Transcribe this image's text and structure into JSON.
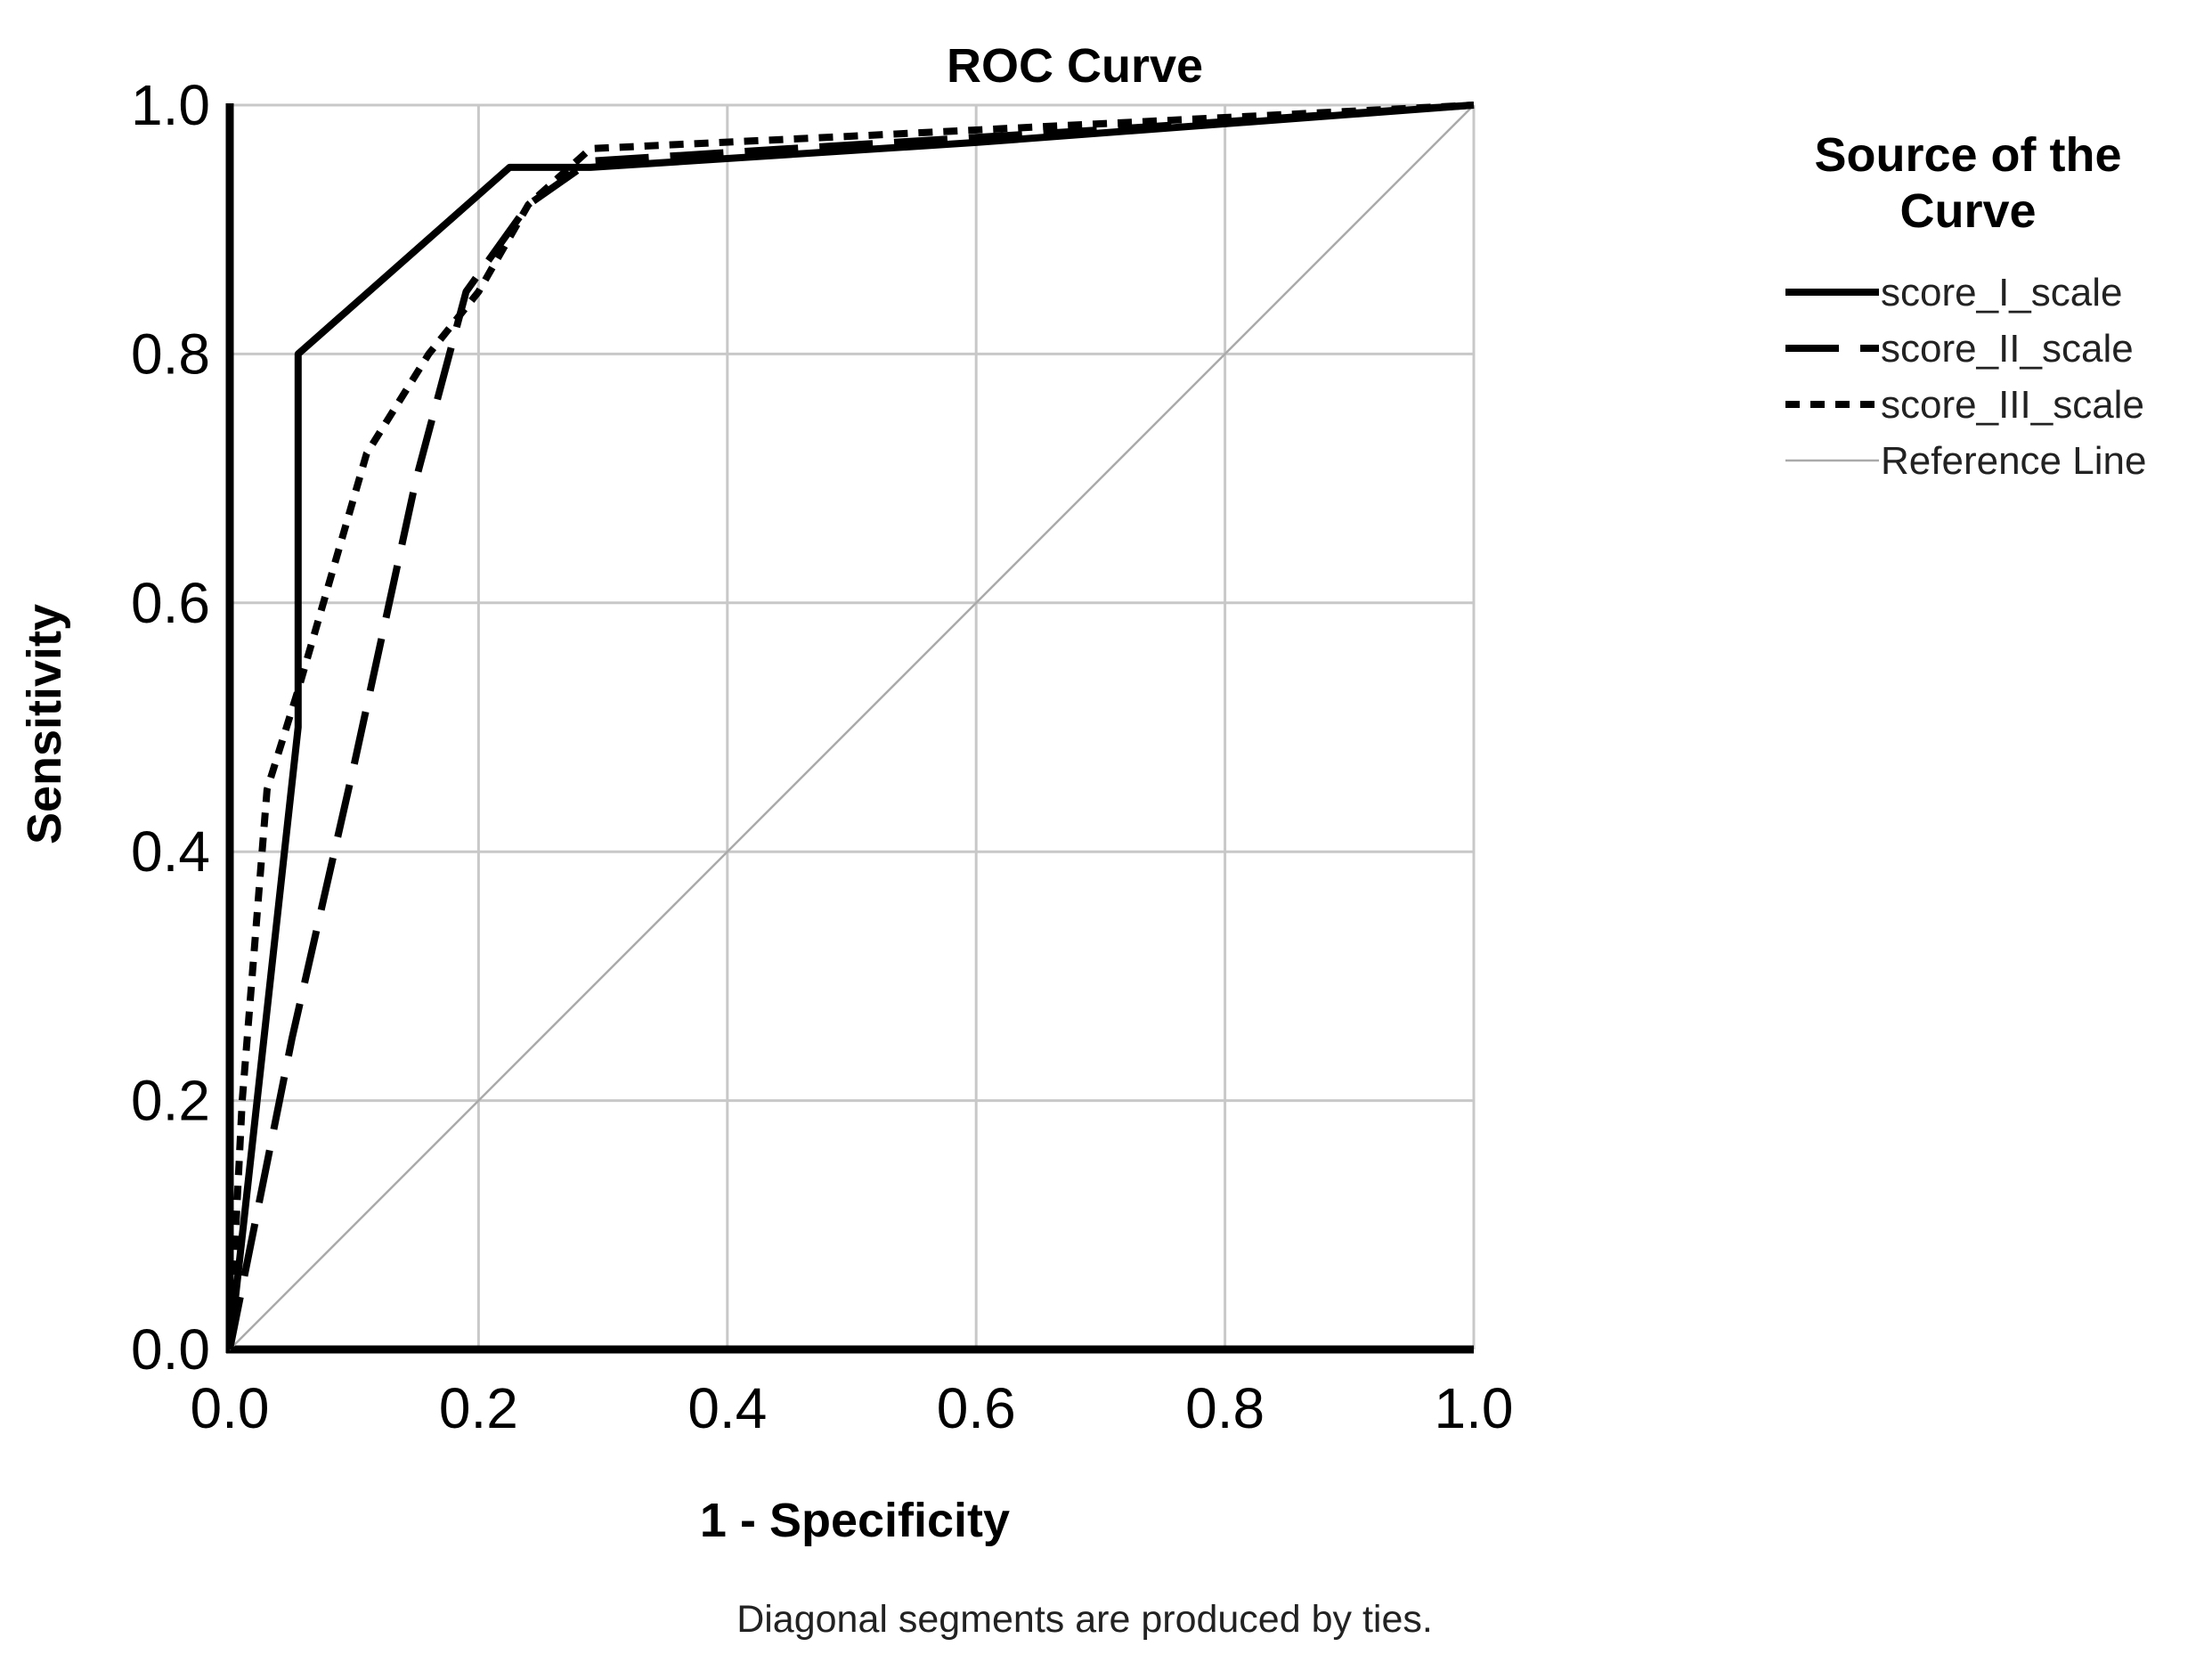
{
  "chart_data": {
    "type": "line",
    "title": "ROC Curve",
    "xlabel": "1 - Specificity",
    "ylabel": "Sensitivity",
    "xlim": [
      0,
      1
    ],
    "ylim": [
      0,
      1
    ],
    "xticks": [
      "0.0",
      "0.2",
      "0.4",
      "0.6",
      "0.8",
      "1.0"
    ],
    "yticks": [
      "0.0",
      "0.2",
      "0.4",
      "0.6",
      "0.8",
      "1.0"
    ],
    "grid": true,
    "legend_title": "Source of the Curve",
    "legend_position": "right",
    "footnote": "Diagonal segments are produced by ties.",
    "series": [
      {
        "name": "score_I_scale",
        "style": "solid-bold",
        "color": "#000000",
        "x": [
          0.0,
          0.055,
          0.055,
          0.225,
          0.29,
          0.6,
          1.0
        ],
        "y": [
          0.0,
          0.5,
          0.8,
          0.95,
          0.95,
          0.97,
          1.0
        ]
      },
      {
        "name": "score_II_scale",
        "style": "long-dash",
        "color": "#000000",
        "x": [
          0.0,
          0.05,
          0.1,
          0.15,
          0.19,
          0.24,
          0.29,
          0.45,
          0.7,
          1.0
        ],
        "y": [
          0.0,
          0.25,
          0.47,
          0.7,
          0.85,
          0.92,
          0.955,
          0.965,
          0.98,
          1.0
        ]
      },
      {
        "name": "score_III_scale",
        "style": "short-dash",
        "color": "#000000",
        "x": [
          0.0,
          0.01,
          0.03,
          0.055,
          0.11,
          0.16,
          0.2,
          0.24,
          0.29,
          0.5,
          1.0
        ],
        "y": [
          0.0,
          0.2,
          0.45,
          0.53,
          0.72,
          0.8,
          0.85,
          0.92,
          0.965,
          0.975,
          1.0
        ]
      },
      {
        "name": "Reference Line",
        "style": "thin",
        "color": "#aaaaaa",
        "x": [
          0.0,
          1.0
        ],
        "y": [
          0.0,
          1.0
        ]
      }
    ]
  }
}
